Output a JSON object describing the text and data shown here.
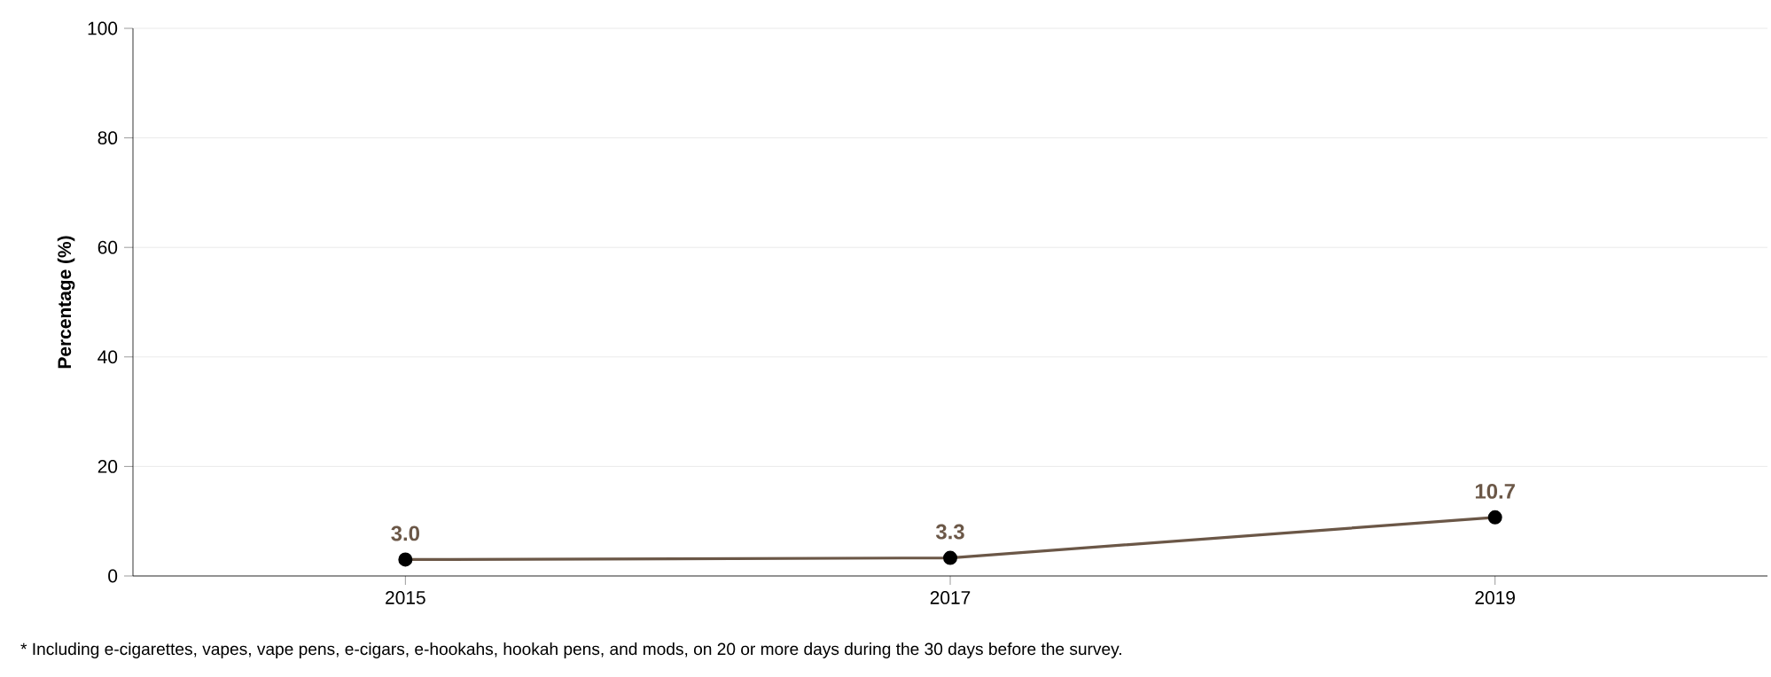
{
  "chart_data": {
    "type": "line",
    "ylabel": "Percentage (%)",
    "categories": [
      "2015",
      "2017",
      "2019"
    ],
    "series": [
      {
        "color": "#6b5747",
        "values": [
          3.0,
          3.3,
          10.7
        ],
        "value_labels": [
          "3.0",
          "3.3",
          "10.7"
        ]
      }
    ],
    "ylim": [
      0,
      100
    ],
    "yticks": [
      0,
      20,
      40,
      60,
      80,
      100
    ],
    "grid": "y",
    "marker": "circle",
    "line_style": "solid",
    "annotations": [
      "* Including e-cigarettes, vapes, vape pens, e-cigars, e-hookahs, hookah pens, and mods, on 20 or more days during the 30 days before the survey."
    ]
  }
}
